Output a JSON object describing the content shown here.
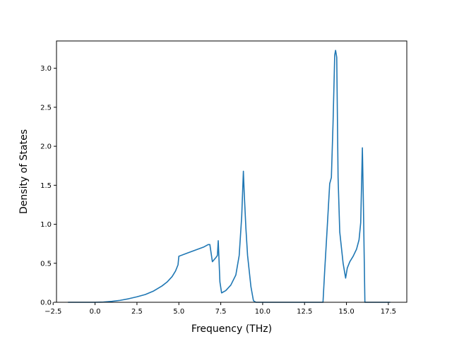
{
  "chart_data": {
    "type": "line",
    "title": "",
    "xlabel": "Frequency (THz)",
    "ylabel": "Density of States",
    "xlim": [
      -2.3,
      18.6
    ],
    "ylim": [
      0,
      3.35
    ],
    "xticks": [
      -2.5,
      0.0,
      2.5,
      5.0,
      7.5,
      10.0,
      12.5,
      15.0,
      17.5
    ],
    "xtick_labels": [
      "−2.5",
      "0.0",
      "2.5",
      "5.0",
      "7.5",
      "10.0",
      "12.5",
      "15.0",
      "17.5"
    ],
    "yticks": [
      0.0,
      0.5,
      1.0,
      1.5,
      2.0,
      2.5,
      3.0
    ],
    "ytick_labels": [
      "0.0",
      "0.5",
      "1.0",
      "1.5",
      "2.0",
      "2.5",
      "3.0"
    ],
    "grid": false,
    "legend": "none",
    "line_color": "#1f77b4",
    "series": [
      {
        "x": [
          -1.6,
          -1.0,
          -0.5,
          0.0,
          0.5,
          1.0,
          1.5,
          2.0,
          2.5,
          3.0,
          3.5,
          4.0,
          4.3,
          4.6,
          4.8,
          4.95,
          5.0,
          5.5,
          6.0,
          6.5,
          6.75,
          6.85,
          7.0,
          7.2,
          7.3,
          7.35,
          7.45,
          7.55,
          7.8,
          8.1,
          8.4,
          8.6,
          8.75,
          8.85,
          8.9,
          9.0,
          9.1,
          9.3,
          9.45,
          9.6,
          10.0,
          11.0,
          12.0,
          13.0,
          13.6,
          13.7,
          13.85,
          14.0,
          14.1,
          14.2,
          14.3,
          14.35,
          14.42,
          14.5,
          14.6,
          14.8,
          14.95,
          15.05,
          15.2,
          15.4,
          15.6,
          15.75,
          15.85,
          15.95,
          16.0,
          16.1,
          16.15,
          17.0,
          17.6
        ],
        "y": [
          0.0,
          0.0,
          0.0,
          0.0,
          0.003,
          0.012,
          0.025,
          0.045,
          0.07,
          0.1,
          0.145,
          0.21,
          0.26,
          0.33,
          0.4,
          0.48,
          0.59,
          0.63,
          0.67,
          0.71,
          0.74,
          0.74,
          0.52,
          0.57,
          0.6,
          0.79,
          0.26,
          0.12,
          0.15,
          0.22,
          0.35,
          0.6,
          1.1,
          1.68,
          1.4,
          0.95,
          0.6,
          0.2,
          0.02,
          0.0,
          0.0,
          0.0,
          0.0,
          0.0,
          0.0,
          0.4,
          0.95,
          1.52,
          1.6,
          2.3,
          3.17,
          3.23,
          3.14,
          1.6,
          0.9,
          0.5,
          0.31,
          0.44,
          0.52,
          0.59,
          0.68,
          0.8,
          1.02,
          1.98,
          1.4,
          0.0,
          0.0,
          0.0,
          0.0
        ]
      }
    ]
  }
}
